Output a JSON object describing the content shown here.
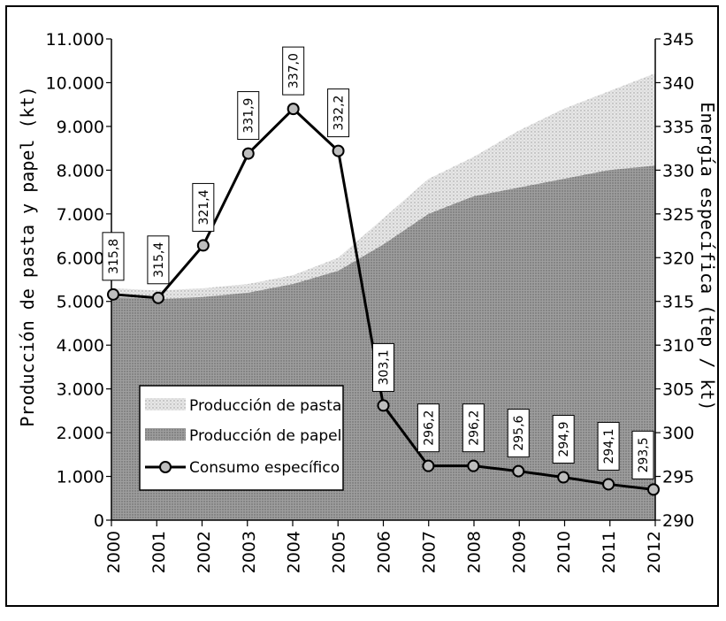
{
  "chart_data": {
    "type": "area",
    "title": "",
    "x": [
      "2000",
      "2001",
      "2002",
      "2003",
      "2004",
      "2005",
      "2006",
      "2007",
      "2008",
      "2009",
      "2010",
      "2011",
      "2012"
    ],
    "y_left_label": "Producción de pasta y papel (kt)",
    "y_right_label": "Energía específica (tep / kt)",
    "y_left_ticks": [
      "11.000",
      "10.000",
      "9.000",
      "8.000",
      "7.000",
      "6.000",
      "5.000",
      "4.000",
      "3.000",
      "2.000",
      "1.000",
      "0"
    ],
    "y_right_ticks": [
      "345",
      "340",
      "335",
      "330",
      "325",
      "320",
      "315",
      "310",
      "305",
      "300",
      "295",
      "290"
    ],
    "y_left_lim": [
      0,
      11000
    ],
    "y_right_lim": [
      290,
      345
    ],
    "series": [
      {
        "name": "Producción de pasta",
        "axis": "left",
        "style": "area-light",
        "values": [
          5300,
          5250,
          5300,
          5400,
          5600,
          6000,
          6900,
          7800,
          8300,
          8900,
          9400,
          9800,
          10200
        ]
      },
      {
        "name": "Producción de papel",
        "axis": "left",
        "style": "area-dark",
        "values": [
          5100,
          5050,
          5100,
          5200,
          5400,
          5700,
          6300,
          7000,
          7400,
          7600,
          7800,
          8000,
          8100
        ]
      },
      {
        "name": "Consumo específico",
        "axis": "right",
        "style": "line-markers",
        "values": [
          315.8,
          315.4,
          321.4,
          331.9,
          337.0,
          332.2,
          303.1,
          296.2,
          296.2,
          295.6,
          294.9,
          294.1,
          293.5
        ],
        "labels": [
          "315,8",
          "315,4",
          "321,4",
          "331,9",
          "337,0",
          "332,2",
          "303,1",
          "296,2",
          "296,2",
          "295,6",
          "294,9",
          "294,1",
          "293,5"
        ]
      }
    ],
    "legend": {
      "position": "bottom-left",
      "entries": [
        "Producción de pasta",
        "Producción de papel",
        "Consumo específico"
      ]
    },
    "grid": false
  },
  "colors": {
    "pasta": "#d9d9d9",
    "papel": "#a6a6a6",
    "line": "#000000",
    "marker_fill": "#bdbdbd"
  }
}
